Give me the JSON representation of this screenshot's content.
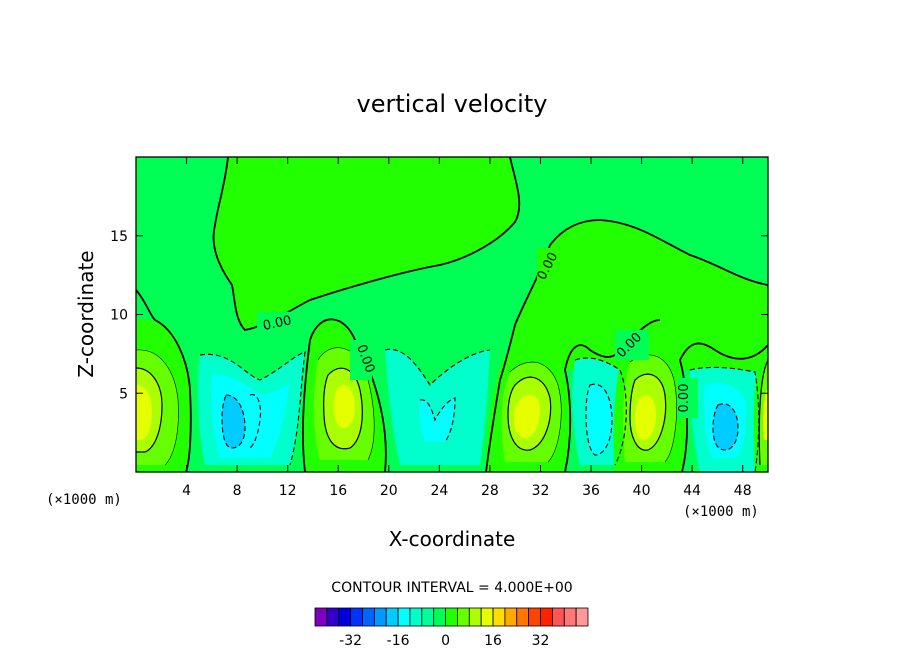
{
  "chart_data": {
    "type": "contour",
    "title": "vertical velocity",
    "xlabel": "X-coordinate",
    "ylabel": "Z-coordinate",
    "x_unit_left": "(×1000 m)",
    "x_unit_right": "(×1000 m)",
    "xlim": [
      0,
      50
    ],
    "ylim": [
      0,
      20
    ],
    "xticks": [
      4,
      8,
      12,
      16,
      20,
      24,
      28,
      32,
      36,
      40,
      44,
      48
    ],
    "yticks": [
      5,
      10,
      15
    ],
    "contour_interval_text": "CONTOUR INTERVAL = 4.000E+00",
    "contour_labels": [
      "0.00",
      "0.00",
      "0.00",
      "0.00",
      "0.00"
    ],
    "colorbar": {
      "ticks": [
        -32,
        -16,
        0,
        16,
        32
      ],
      "colors": [
        "#7f00bf",
        "#3300cc",
        "#0000dd",
        "#0033ff",
        "#0066ff",
        "#0099ff",
        "#00ccff",
        "#00ffff",
        "#00ffcc",
        "#00ff99",
        "#00ff55",
        "#22ff00",
        "#66ff00",
        "#aaff00",
        "#e6ff00",
        "#ffdd00",
        "#ffaa00",
        "#ff7700",
        "#ff4400",
        "#ff2200",
        "#ff5555",
        "#ff7777",
        "#ff9999"
      ]
    },
    "extrema": [
      {
        "x": 0.8,
        "z": 4.0,
        "sign": "up"
      },
      {
        "x": 8.2,
        "z": 3.5,
        "sign": "down"
      },
      {
        "x": 16.6,
        "z": 4.2,
        "sign": "up"
      },
      {
        "x": 23.5,
        "z": 3.5,
        "sign": "down"
      },
      {
        "x": 30.4,
        "z": 4.0,
        "sign": "up"
      },
      {
        "x": 37.0,
        "z": 3.5,
        "sign": "down"
      },
      {
        "x": 40.4,
        "z": 3.5,
        "sign": "up"
      },
      {
        "x": 46.4,
        "z": 3.0,
        "sign": "down"
      },
      {
        "x": 49.6,
        "z": 3.5,
        "sign": "up"
      }
    ]
  }
}
